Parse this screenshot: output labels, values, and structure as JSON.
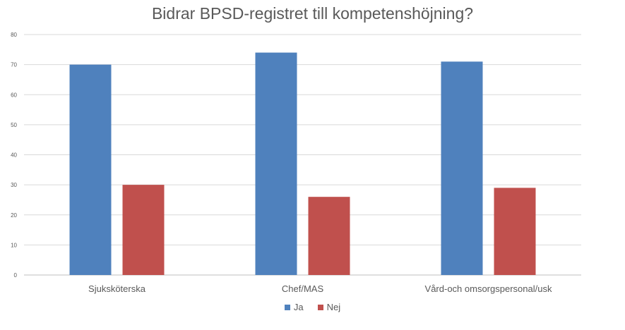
{
  "chart_data": {
    "type": "bar",
    "title": "Bidrar BPSD-registret till kompetenshöjning?",
    "xlabel": "",
    "ylabel": "",
    "categories": [
      "Sjuksköterska",
      "Chef/MAS",
      "Vård-och omsorgspersonal/usk"
    ],
    "series": [
      {
        "name": "Ja",
        "values": [
          70,
          74,
          71
        ],
        "color": "#4F81BD"
      },
      {
        "name": "Nej",
        "values": [
          30,
          26,
          29
        ],
        "color": "#C0504D"
      }
    ],
    "ylim": [
      0,
      80
    ],
    "yticks": [
      "0",
      "10",
      "20",
      "30",
      "40",
      "50",
      "60",
      "70",
      "80"
    ],
    "grid": true,
    "legend_position": "bottom"
  }
}
